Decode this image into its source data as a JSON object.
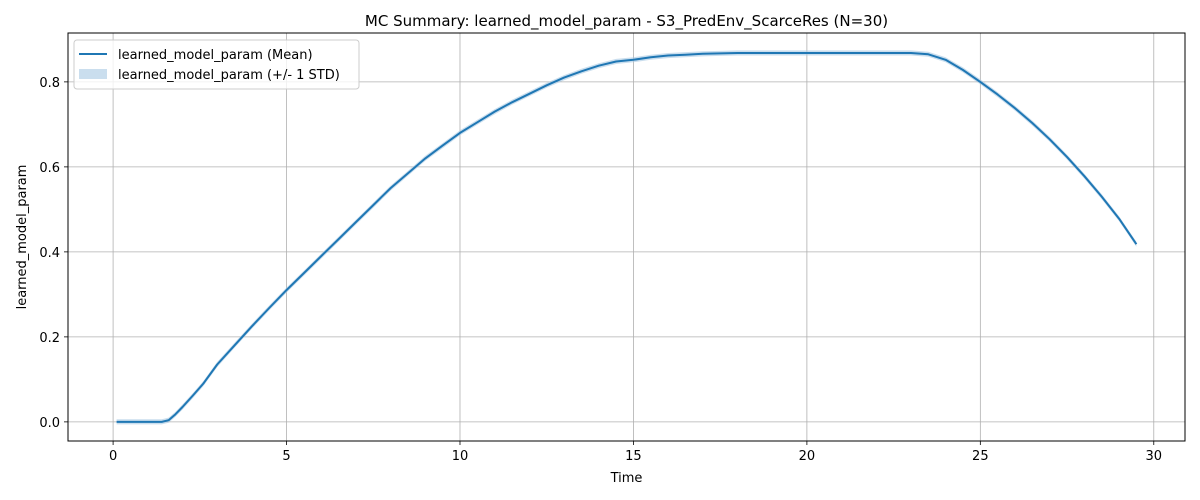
{
  "chart_data": {
    "type": "line",
    "title": "MC Summary: learned_model_param - S3_PredEnv_ScarceRes (N=30)",
    "xlabel": "Time",
    "ylabel": "learned_model_param",
    "xlim": [
      -1.3,
      30.9
    ],
    "ylim": [
      -0.045,
      0.915
    ],
    "xticks": [
      0,
      5,
      10,
      15,
      20,
      25,
      30
    ],
    "yticks": [
      0.0,
      0.2,
      0.4,
      0.6,
      0.8
    ],
    "ytick_labels": [
      "0.0",
      "0.2",
      "0.4",
      "0.6",
      "0.8"
    ],
    "grid": true,
    "legend_position": "top-left",
    "colors": {
      "mean_line": "#1f77b4",
      "std_band": "#a6c8e3",
      "grid": "#b0b0b0"
    },
    "series": [
      {
        "name": "learned_model_param (Mean)",
        "kind": "line",
        "x": [
          0.1,
          0.5,
          1.0,
          1.4,
          1.6,
          1.8,
          2.0,
          2.3,
          2.6,
          3.0,
          3.5,
          4.0,
          4.5,
          5.0,
          5.5,
          6.0,
          6.5,
          7.0,
          7.5,
          8.0,
          8.5,
          9.0,
          9.5,
          10.0,
          10.5,
          11.0,
          11.5,
          12.0,
          12.5,
          13.0,
          13.5,
          14.0,
          14.5,
          15.0,
          15.5,
          16.0,
          16.5,
          17.0,
          17.5,
          18.0,
          19.0,
          20.0,
          21.0,
          22.0,
          23.0,
          23.5,
          24.0,
          24.5,
          25.0,
          25.5,
          26.0,
          26.5,
          27.0,
          27.5,
          28.0,
          28.5,
          29.0,
          29.5
        ],
        "y": [
          0.0,
          0.0,
          0.0,
          0.0,
          0.004,
          0.018,
          0.035,
          0.062,
          0.09,
          0.135,
          0.18,
          0.225,
          0.268,
          0.31,
          0.35,
          0.39,
          0.43,
          0.47,
          0.51,
          0.55,
          0.585,
          0.62,
          0.65,
          0.68,
          0.705,
          0.73,
          0.752,
          0.772,
          0.792,
          0.81,
          0.825,
          0.838,
          0.848,
          0.852,
          0.858,
          0.862,
          0.864,
          0.866,
          0.867,
          0.868,
          0.868,
          0.868,
          0.868,
          0.868,
          0.868,
          0.865,
          0.852,
          0.828,
          0.8,
          0.77,
          0.738,
          0.703,
          0.665,
          0.623,
          0.578,
          0.53,
          0.478,
          0.418
        ]
      },
      {
        "name": "learned_model_param (+/- 1 STD)",
        "kind": "band",
        "std": 0.006
      }
    ]
  }
}
